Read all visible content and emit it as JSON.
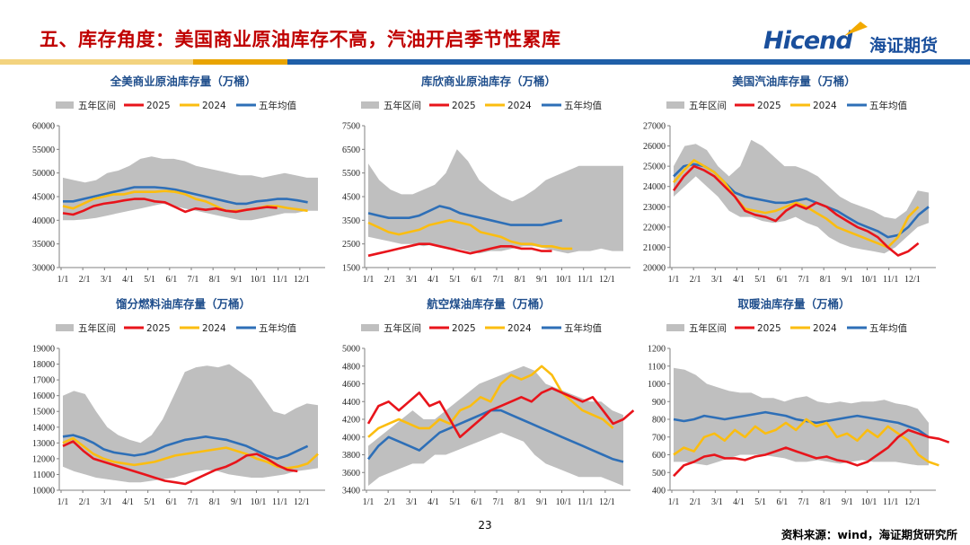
{
  "header": {
    "title": "五、库存角度：美国商业原油库存不高，汽油开启季节性累库",
    "logo_text": "Hicend",
    "logo_cn": "海证期货"
  },
  "footer": {
    "page_number": "23",
    "source": "资料来源：wind，海证期货研究所"
  },
  "colors": {
    "band": "#bfbfbf",
    "y2025": "#e8141b",
    "y2024": "#fbbd10",
    "avg": "#2e6fb7",
    "stripe_gold": "#e9a400",
    "stripe_blue": "#1f5fa8",
    "stripe_light": "#f3d37f"
  },
  "legend_labels": [
    "五年区间",
    "2025",
    "2024",
    "五年均值"
  ],
  "x_ticks": [
    "1/1",
    "2/1",
    "3/1",
    "4/1",
    "5/1",
    "6/1",
    "7/1",
    "8/1",
    "9/1",
    "10/1",
    "11/1",
    "12/1"
  ],
  "chart_data": [
    {
      "type": "line",
      "title": "全美商业原油库存量（万桶）",
      "ylim": [
        30000,
        60000
      ],
      "yticks": [
        "30000",
        "35000",
        "40000",
        "45000",
        "50000",
        "55000",
        "60000"
      ],
      "series": [
        {
          "name": "五年区间",
          "type": "band",
          "low": [
            40000,
            40000,
            40200,
            40500,
            41000,
            41500,
            42000,
            42500,
            43000,
            43500,
            43000,
            42500,
            42000,
            41500,
            41000,
            40500,
            40000,
            40000,
            40500,
            41000,
            41500,
            41500,
            42000,
            42000
          ],
          "high": [
            49000,
            48500,
            48000,
            48500,
            50000,
            50500,
            51500,
            53000,
            53500,
            53000,
            53000,
            52500,
            51500,
            51000,
            50500,
            50000,
            49500,
            49500,
            49000,
            49500,
            50000,
            49500,
            49000,
            49000
          ]
        },
        {
          "name": "2025",
          "values": [
            41500,
            41200,
            42000,
            43000,
            43500,
            43800,
            44200,
            44500,
            44500,
            44000,
            43800,
            42800,
            41800,
            42500,
            42200,
            42500,
            42000,
            41800,
            42200,
            42500,
            42800,
            42600
          ]
        },
        {
          "name": "2024",
          "values": [
            43000,
            42500,
            43500,
            44500,
            45000,
            45500,
            45500,
            46000,
            46000,
            46000,
            46200,
            46000,
            45500,
            44500,
            44000,
            43000,
            42000,
            42000,
            42200,
            42500,
            43000,
            43000,
            42600,
            42300,
            42000
          ]
        },
        {
          "name": "五年均值",
          "values": [
            44000,
            44000,
            44500,
            45000,
            45500,
            46000,
            46500,
            47000,
            47000,
            47000,
            46800,
            46500,
            46000,
            45500,
            45000,
            44500,
            44000,
            43500,
            43500,
            44000,
            44200,
            44500,
            44500,
            44200,
            43800
          ]
        }
      ]
    },
    {
      "type": "line",
      "title": "库欣商业原油库存（万桶）",
      "ylim": [
        1500,
        7500
      ],
      "yticks": [
        "1500",
        "2500",
        "3500",
        "4500",
        "5500",
        "6500",
        "7500"
      ],
      "series": [
        {
          "name": "五年区间",
          "type": "band",
          "low": [
            2800,
            2700,
            2600,
            2500,
            2500,
            2400,
            2500,
            2300,
            2300,
            2200,
            2100,
            2200,
            2200,
            2300,
            2400,
            2400,
            2300,
            2200,
            2100,
            2200,
            2200,
            2300,
            2200,
            2200
          ],
          "high": [
            5900,
            5200,
            4800,
            4600,
            4600,
            4800,
            5000,
            5500,
            6500,
            6000,
            5200,
            4800,
            4500,
            4300,
            4500,
            4800,
            5200,
            5400,
            5600,
            5800,
            5800,
            5800,
            5800,
            5800
          ]
        },
        {
          "name": "2025",
          "values": [
            2000,
            2100,
            2200,
            2300,
            2400,
            2500,
            2500,
            2400,
            2300,
            2200,
            2100,
            2200,
            2300,
            2400,
            2400,
            2300,
            2300,
            2200,
            2200
          ]
        },
        {
          "name": "2024",
          "values": [
            3400,
            3200,
            3000,
            2900,
            3000,
            3100,
            3300,
            3400,
            3500,
            3400,
            3300,
            3000,
            2900,
            2800,
            2600,
            2500,
            2500,
            2400,
            2400,
            2300,
            2300
          ]
        },
        {
          "name": "五年均值",
          "values": [
            3800,
            3700,
            3600,
            3600,
            3600,
            3700,
            3900,
            4100,
            4000,
            3800,
            3700,
            3600,
            3500,
            3400,
            3300,
            3300,
            3300,
            3300,
            3400,
            3500
          ]
        }
      ]
    },
    {
      "type": "line",
      "title": "美国汽油库存量（万桶）",
      "ylim": [
        20000,
        27000
      ],
      "yticks": [
        "20000",
        "21000",
        "22000",
        "23000",
        "24000",
        "25000",
        "26000",
        "27000"
      ],
      "series": [
        {
          "name": "五年区间",
          "type": "band",
          "low": [
            23500,
            24000,
            24500,
            24000,
            23500,
            22800,
            22500,
            22500,
            22300,
            22200,
            22300,
            22500,
            22200,
            22000,
            21500,
            21200,
            21000,
            20900,
            20800,
            20700,
            21000,
            21500,
            22000,
            22200
          ],
          "high": [
            25000,
            26000,
            26100,
            25800,
            25000,
            24500,
            25000,
            26300,
            26000,
            25500,
            25000,
            25000,
            24800,
            24500,
            24000,
            23500,
            23200,
            23000,
            22800,
            22500,
            22400,
            22800,
            23800,
            23700
          ]
        },
        {
          "name": "2025",
          "values": [
            23800,
            24500,
            25000,
            24800,
            24500,
            24000,
            23500,
            22800,
            22600,
            22500,
            22300,
            22800,
            23100,
            22900,
            23200,
            23000,
            22600,
            22300,
            22000,
            21800,
            21500,
            21000,
            20600,
            20800,
            21200
          ]
        },
        {
          "name": "2024",
          "values": [
            24200,
            24800,
            25300,
            25000,
            24700,
            24200,
            23500,
            22900,
            22800,
            22700,
            22800,
            23000,
            23200,
            23000,
            22700,
            22400,
            22000,
            21800,
            21600,
            21400,
            21200,
            21000,
            21500,
            22500,
            23000
          ]
        },
        {
          "name": "五年均值",
          "values": [
            24500,
            25000,
            25100,
            25000,
            24700,
            24200,
            23700,
            23500,
            23400,
            23300,
            23200,
            23200,
            23300,
            23400,
            23200,
            23000,
            22800,
            22500,
            22200,
            22000,
            21800,
            21500,
            21600,
            22000,
            22600,
            23000
          ]
        }
      ]
    },
    {
      "type": "line",
      "title": "馏分燃料油库存量（万桶）",
      "ylim": [
        10000,
        19000
      ],
      "yticks": [
        "10000",
        "11000",
        "12000",
        "13000",
        "14000",
        "15000",
        "16000",
        "17000",
        "18000",
        "19000"
      ],
      "series": [
        {
          "name": "五年区间",
          "type": "band",
          "low": [
            11500,
            11200,
            11000,
            10800,
            10700,
            10600,
            10500,
            10500,
            10600,
            10700,
            10800,
            11000,
            11200,
            11300,
            11200,
            11000,
            10900,
            10800,
            10800,
            10900,
            11000,
            11200,
            11300,
            11400
          ],
          "high": [
            16000,
            16300,
            16100,
            15000,
            14000,
            13500,
            13200,
            13000,
            13500,
            14500,
            16000,
            17500,
            17800,
            17900,
            17800,
            18000,
            17500,
            17000,
            16000,
            15000,
            14800,
            15200,
            15500,
            15400
          ]
        },
        {
          "name": "2025",
          "values": [
            12800,
            13100,
            12500,
            12000,
            11800,
            11600,
            11400,
            11200,
            11000,
            10800,
            10600,
            10500,
            10400,
            10700,
            11000,
            11300,
            11500,
            11800,
            12200,
            12300,
            12000,
            11600,
            11300,
            11200
          ]
        },
        {
          "name": "2024",
          "values": [
            13000,
            13300,
            12800,
            12300,
            12000,
            11800,
            11700,
            11600,
            11700,
            11800,
            12000,
            12200,
            12300,
            12400,
            12500,
            12600,
            12700,
            12500,
            12300,
            12000,
            11800,
            11500,
            11400,
            11500,
            11700,
            12300
          ]
        },
        {
          "name": "五年均值",
          "values": [
            13400,
            13500,
            13300,
            13000,
            12600,
            12400,
            12300,
            12200,
            12300,
            12500,
            12800,
            13000,
            13200,
            13300,
            13400,
            13300,
            13200,
            13000,
            12800,
            12500,
            12200,
            12000,
            12200,
            12500,
            12800
          ]
        }
      ]
    },
    {
      "type": "line",
      "title": "航空煤油库存量（万桶）",
      "ylim": [
        3400,
        5000
      ],
      "yticks": [
        "3400",
        "3600",
        "3800",
        "4000",
        "4200",
        "4400",
        "4600",
        "4800",
        "5000"
      ],
      "series": [
        {
          "name": "五年区间",
          "type": "band",
          "low": [
            3450,
            3550,
            3600,
            3650,
            3700,
            3700,
            3800,
            3800,
            3850,
            3900,
            3950,
            4000,
            4050,
            4000,
            3950,
            3800,
            3700,
            3650,
            3600,
            3550,
            3550,
            3550,
            3500,
            3450
          ],
          "high": [
            3900,
            4000,
            4100,
            4200,
            4300,
            4200,
            4200,
            4300,
            4400,
            4500,
            4600,
            4650,
            4700,
            4750,
            4800,
            4750,
            4600,
            4550,
            4500,
            4450,
            4400,
            4400,
            4300,
            4250
          ]
        },
        {
          "name": "2025",
          "values": [
            4150,
            4350,
            4400,
            4300,
            4400,
            4500,
            4350,
            4400,
            4200,
            4000,
            4100,
            4200,
            4300,
            4350,
            4400,
            4450,
            4400,
            4500,
            4550,
            4500,
            4450,
            4400,
            4450,
            4300,
            4150,
            4200,
            4300
          ]
        },
        {
          "name": "2024",
          "values": [
            4000,
            4100,
            4150,
            4200,
            4150,
            4100,
            4100,
            4200,
            4150,
            4300,
            4350,
            4450,
            4400,
            4600,
            4700,
            4650,
            4700,
            4800,
            4700,
            4500,
            4400,
            4300,
            4250,
            4200,
            4100
          ]
        },
        {
          "name": "五年均值",
          "values": [
            3750,
            3900,
            4000,
            3950,
            3900,
            3850,
            3950,
            4050,
            4100,
            4150,
            4200,
            4250,
            4300,
            4300,
            4250,
            4200,
            4150,
            4100,
            4050,
            4000,
            3950,
            3900,
            3850,
            3800,
            3750,
            3720
          ]
        }
      ]
    },
    {
      "type": "line",
      "title": "取暖油库存量（万桶）",
      "ylim": [
        400,
        1200
      ],
      "yticks": [
        "400",
        "500",
        "600",
        "700",
        "800",
        "900",
        "1000",
        "1100",
        "1200"
      ],
      "series": [
        {
          "name": "五年区间",
          "type": "band",
          "low": [
            560,
            560,
            550,
            540,
            560,
            580,
            600,
            600,
            600,
            590,
            580,
            560,
            560,
            570,
            560,
            550,
            560,
            570,
            560,
            560,
            560,
            550,
            540,
            540
          ],
          "high": [
            1090,
            1080,
            1050,
            1000,
            980,
            960,
            950,
            950,
            920,
            920,
            900,
            920,
            930,
            900,
            890,
            900,
            890,
            900,
            900,
            910,
            890,
            880,
            860,
            780
          ]
        },
        {
          "name": "2025",
          "values": [
            480,
            540,
            560,
            590,
            600,
            580,
            580,
            570,
            590,
            600,
            620,
            640,
            620,
            600,
            580,
            590,
            570,
            560,
            540,
            560,
            600,
            640,
            700,
            740,
            720,
            700,
            690,
            670
          ]
        },
        {
          "name": "2024",
          "values": [
            600,
            640,
            620,
            700,
            720,
            680,
            740,
            700,
            760,
            720,
            740,
            780,
            740,
            800,
            760,
            780,
            700,
            720,
            680,
            740,
            700,
            760,
            720,
            680,
            600,
            560,
            540
          ]
        },
        {
          "name": "五年均值",
          "values": [
            800,
            790,
            800,
            820,
            810,
            800,
            810,
            820,
            830,
            840,
            830,
            820,
            800,
            790,
            780,
            790,
            800,
            810,
            820,
            810,
            800,
            790,
            780,
            760,
            740,
            700
          ]
        }
      ]
    }
  ]
}
